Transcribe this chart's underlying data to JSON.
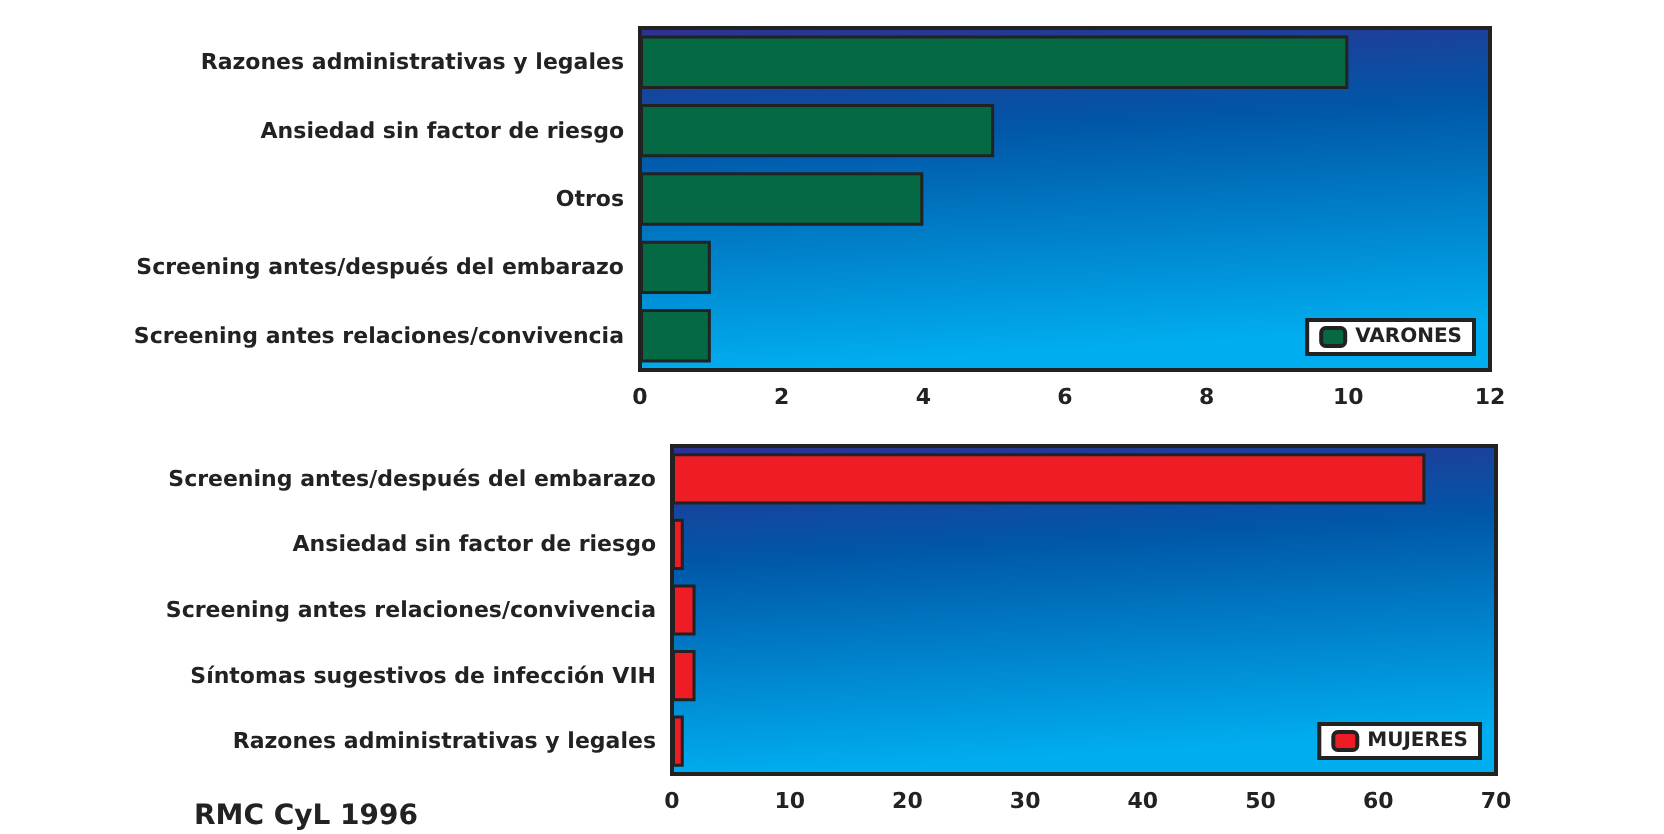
{
  "chart_data": [
    {
      "type": "bar",
      "orientation": "horizontal",
      "categories": [
        "Razones administrativas y legales",
        "Ansiedad sin factor de riesgo",
        "Otros",
        "Screening antes/después del embarazo",
        "Screening antes relaciones/convivencia"
      ],
      "series": [
        {
          "name": "VARONES",
          "color": "#056a43",
          "values": [
            10,
            5,
            4,
            1,
            1
          ]
        }
      ],
      "xlim": [
        0,
        12
      ],
      "xticks": [
        0,
        2,
        4,
        6,
        8,
        10,
        12
      ],
      "legend": "bottom right"
    },
    {
      "type": "bar",
      "orientation": "horizontal",
      "categories": [
        "Screening antes/después del embarazo",
        "Ansiedad sin factor de riesgo",
        "Screening antes relaciones/convivencia",
        "Síntomas sugestivos de infección VIH",
        "Razones administrativas y legales"
      ],
      "series": [
        {
          "name": "MUJERES",
          "color": "#ee1c25",
          "values": [
            64,
            1,
            2,
            2,
            1
          ]
        }
      ],
      "xlim": [
        0,
        70
      ],
      "xticks": [
        0,
        10,
        20,
        30,
        40,
        50,
        60,
        70
      ],
      "legend": "bottom right",
      "annotations": [
        "RMC CyL 1996"
      ]
    }
  ]
}
